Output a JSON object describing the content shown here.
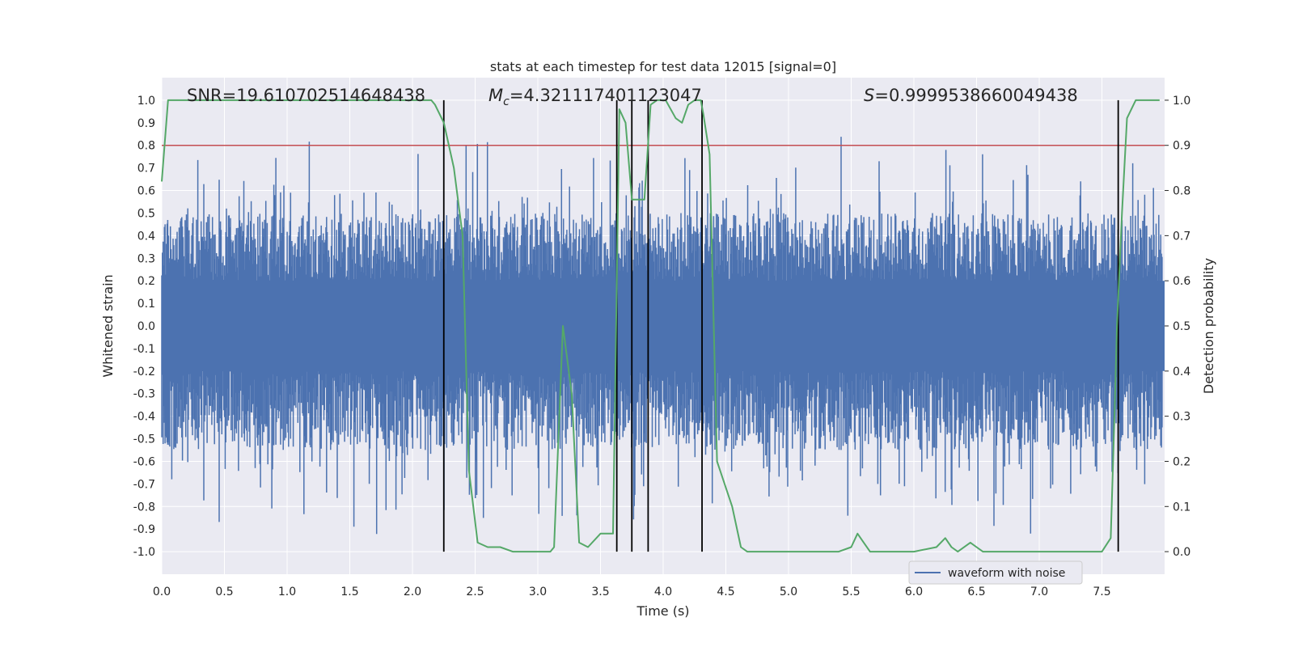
{
  "chart_data": {
    "type": "line",
    "title": "stats at each timestep for test data 12015 [signal=0]",
    "xlabel": "Time (s)",
    "ylabel": "Whitened strain",
    "y2label": "Detection probability",
    "xlim": [
      0.0,
      8.0
    ],
    "ylim": [
      -1.1,
      1.1
    ],
    "y2lim": [
      -0.05,
      1.05
    ],
    "x_ticks": [
      "0.0",
      "0.5",
      "1.0",
      "1.5",
      "2.0",
      "2.5",
      "3.0",
      "3.5",
      "4.0",
      "4.5",
      "5.0",
      "5.5",
      "6.0",
      "6.5",
      "7.0",
      "7.5"
    ],
    "y_ticks": [
      "1.0",
      "0.9",
      "0.8",
      "0.7",
      "0.6",
      "0.5",
      "0.4",
      "0.3",
      "0.2",
      "0.1",
      "0.0",
      "-0.1",
      "-0.2",
      "-0.3",
      "-0.4",
      "-0.5",
      "-0.6",
      "-0.7",
      "-0.8",
      "-0.9",
      "-1.0"
    ],
    "y2_ticks": [
      "1.0",
      "0.9",
      "0.8",
      "0.7",
      "0.6",
      "0.5",
      "0.4",
      "0.3",
      "0.2",
      "0.1",
      "0.0"
    ],
    "annotations": {
      "snr": "SNR=19.610702514648438",
      "mc_symbol": "M",
      "mc_sub": "c",
      "mc_value": "=4.321117401123047",
      "s_symbol": "S",
      "s_value": "=0.9999538660049438"
    },
    "threshold_line": {
      "y2": 0.9,
      "color": "#c44e52"
    },
    "vertical_lines_x": [
      2.25,
      3.63,
      3.75,
      3.88,
      4.31,
      7.63
    ],
    "series": [
      {
        "name": "waveform with noise",
        "color": "#4c72b0",
        "description": "dense whitened noise; envelope ranges roughly -1.0 to 0.92"
      },
      {
        "name": "detection probability",
        "color": "#55a868",
        "axis": "right",
        "x": [
          0.0,
          0.05,
          0.1,
          0.2,
          0.5,
          1.0,
          1.5,
          2.0,
          2.15,
          2.18,
          2.25,
          2.33,
          2.4,
          2.45,
          2.52,
          2.6,
          2.65,
          2.7,
          2.8,
          3.0,
          3.1,
          3.13,
          3.2,
          3.27,
          3.33,
          3.4,
          3.5,
          3.55,
          3.6,
          3.65,
          3.7,
          3.75,
          3.8,
          3.85,
          3.9,
          3.95,
          4.02,
          4.1,
          4.15,
          4.2,
          4.25,
          4.3,
          4.32,
          4.37,
          4.43,
          4.55,
          4.62,
          4.67,
          4.8,
          5.0,
          5.4,
          5.5,
          5.55,
          5.6,
          5.65,
          5.8,
          6.0,
          6.18,
          6.25,
          6.3,
          6.35,
          6.45,
          6.5,
          6.55,
          6.65,
          6.8,
          7.0,
          7.05,
          7.3,
          7.5,
          7.57,
          7.6,
          7.62,
          7.66,
          7.7,
          7.77,
          7.9,
          7.96
        ],
        "y": [
          0.82,
          1.0,
          1.0,
          1.0,
          1.0,
          1.0,
          1.0,
          1.0,
          1.0,
          0.99,
          0.95,
          0.85,
          0.7,
          0.18,
          0.02,
          0.01,
          0.01,
          0.01,
          0.0,
          0.0,
          0.0,
          0.01,
          0.5,
          0.35,
          0.02,
          0.01,
          0.04,
          0.04,
          0.04,
          0.98,
          0.95,
          0.78,
          0.78,
          0.78,
          0.99,
          1.0,
          1.0,
          0.96,
          0.95,
          0.99,
          1.0,
          1.0,
          0.97,
          0.88,
          0.2,
          0.1,
          0.01,
          0.0,
          0.0,
          0.0,
          0.0,
          0.01,
          0.04,
          0.02,
          0.0,
          0.0,
          0.0,
          0.01,
          0.03,
          0.01,
          0.0,
          0.02,
          0.01,
          0.0,
          0.0,
          0.0,
          0.0,
          0.0,
          0.0,
          0.0,
          0.03,
          0.3,
          0.5,
          0.75,
          0.96,
          1.0,
          1.0,
          1.0
        ]
      }
    ],
    "legend": {
      "label": "waveform with noise",
      "position": "bottom-right"
    },
    "grid": true,
    "colors": {
      "background": "#eaeaf2",
      "grid": "#ffffff",
      "vline": "#000000"
    }
  }
}
